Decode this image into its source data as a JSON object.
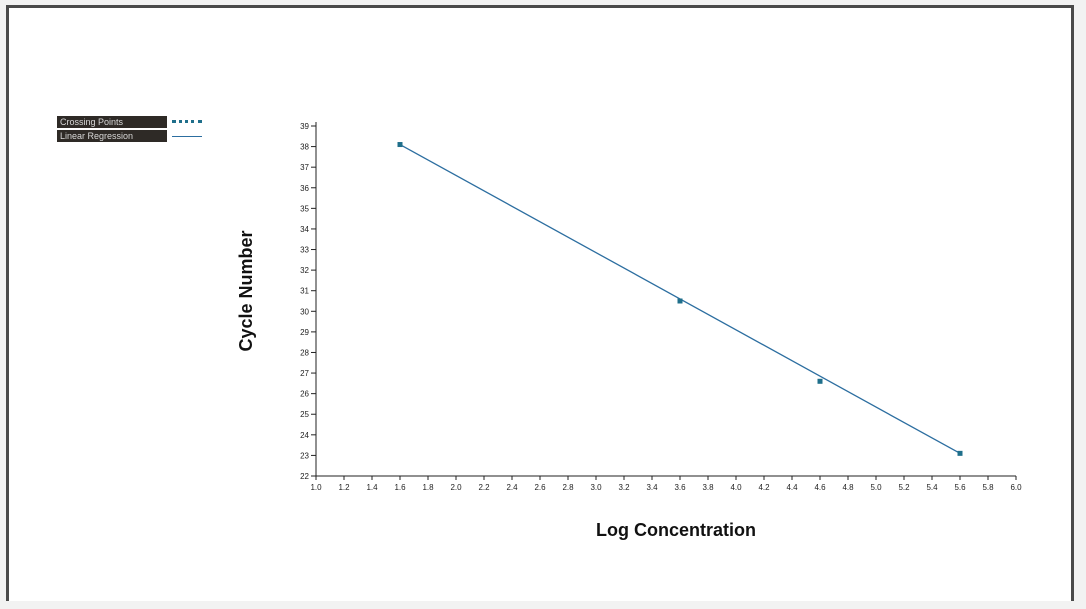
{
  "chart_data": {
    "type": "scatter",
    "title": "",
    "xlabel": "Log Concentration",
    "ylabel": "Cycle Number",
    "xlim": [
      1.0,
      6.0
    ],
    "ylim": [
      22,
      39
    ],
    "x_ticks": [
      "1.0",
      "1.2",
      "1.4",
      "1.6",
      "1.8",
      "2.0",
      "2.2",
      "2.4",
      "2.6",
      "2.8",
      "3.0",
      "3.2",
      "3.4",
      "3.6",
      "3.8",
      "4.0",
      "4.2",
      "4.4",
      "4.6",
      "4.8",
      "5.0",
      "5.2",
      "5.4",
      "5.6",
      "5.8",
      "6.0"
    ],
    "y_ticks": [
      "22",
      "23",
      "24",
      "25",
      "26",
      "27",
      "28",
      "29",
      "30",
      "31",
      "32",
      "33",
      "34",
      "35",
      "36",
      "37",
      "38",
      "39"
    ],
    "grid": false,
    "legend_position": "top-left",
    "series": [
      {
        "name": "Crossing Points",
        "style": "dotted",
        "color": "#1f6f8b",
        "points": [
          {
            "x": 1.6,
            "y": 38.1
          },
          {
            "x": 3.6,
            "y": 30.5
          },
          {
            "x": 4.6,
            "y": 26.6
          },
          {
            "x": 5.6,
            "y": 23.1
          }
        ]
      },
      {
        "name": "Linear Regression",
        "style": "line",
        "color": "#2c6ea0",
        "line": [
          {
            "x": 1.6,
            "y": 38.1
          },
          {
            "x": 5.6,
            "y": 23.1
          }
        ]
      }
    ]
  }
}
